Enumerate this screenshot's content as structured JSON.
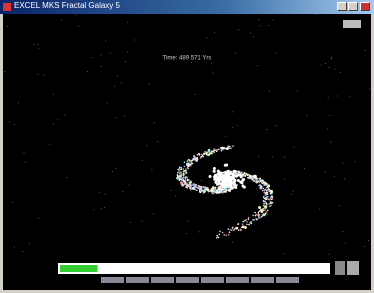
{
  "window": {
    "title": "EXCEL MKS Fractal Galaxy 5"
  },
  "view": {
    "caption": "Time: 489 571 Yrs"
  },
  "progress": {
    "value": 14,
    "max": 100
  }
}
